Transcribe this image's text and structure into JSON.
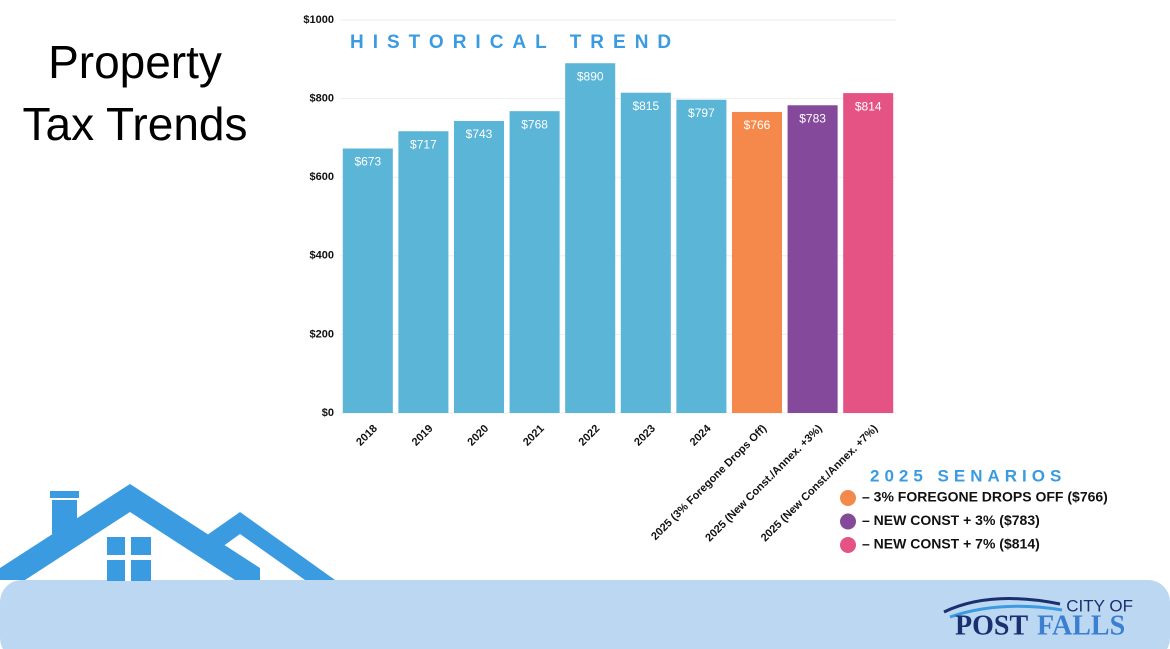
{
  "slide": {
    "title": "Property Tax Trends"
  },
  "chart_data": {
    "type": "bar",
    "title": "HISTORICAL TREND",
    "categories": [
      "2018",
      "2019",
      "2020",
      "2021",
      "2022",
      "2023",
      "2024",
      "2025 (3% Foregone Drops Off)",
      "2025 (New Const./Annex. +3%)",
      "2025 (New Const./Annex. +7%)"
    ],
    "values": [
      673,
      717,
      743,
      768,
      890,
      815,
      797,
      766,
      783,
      814
    ],
    "value_labels": [
      "$673",
      "$717",
      "$743",
      "$768",
      "$890",
      "$815",
      "$797",
      "$766",
      "$783",
      "$814"
    ],
    "colors": [
      "#5ab5d6",
      "#5ab5d6",
      "#5ab5d6",
      "#5ab5d6",
      "#5ab5d6",
      "#5ab5d6",
      "#5ab5d6",
      "#f5894b",
      "#84499b",
      "#e45383"
    ],
    "ylim": [
      0,
      1000
    ],
    "yticks": [
      {
        "value": 0,
        "label": "$0"
      },
      {
        "value": 200,
        "label": "$200"
      },
      {
        "value": 400,
        "label": "$400"
      },
      {
        "value": 600,
        "label": "$600"
      },
      {
        "value": 800,
        "label": "$800"
      },
      {
        "value": 1000,
        "label": "$1000"
      }
    ],
    "grid": true,
    "legend": {
      "title": "2025 SENARIOS",
      "items": [
        {
          "label": "– 3% FOREGONE DROPS OFF ($766)",
          "color": "#f5894b"
        },
        {
          "label": "– NEW CONST + 3% ($783)",
          "color": "#84499b"
        },
        {
          "label": " – NEW CONST + 7% ($814)",
          "color": "#e45383"
        }
      ]
    }
  },
  "logo": {
    "top": "CITY OF",
    "left": "POST",
    "right": "FALLS"
  }
}
